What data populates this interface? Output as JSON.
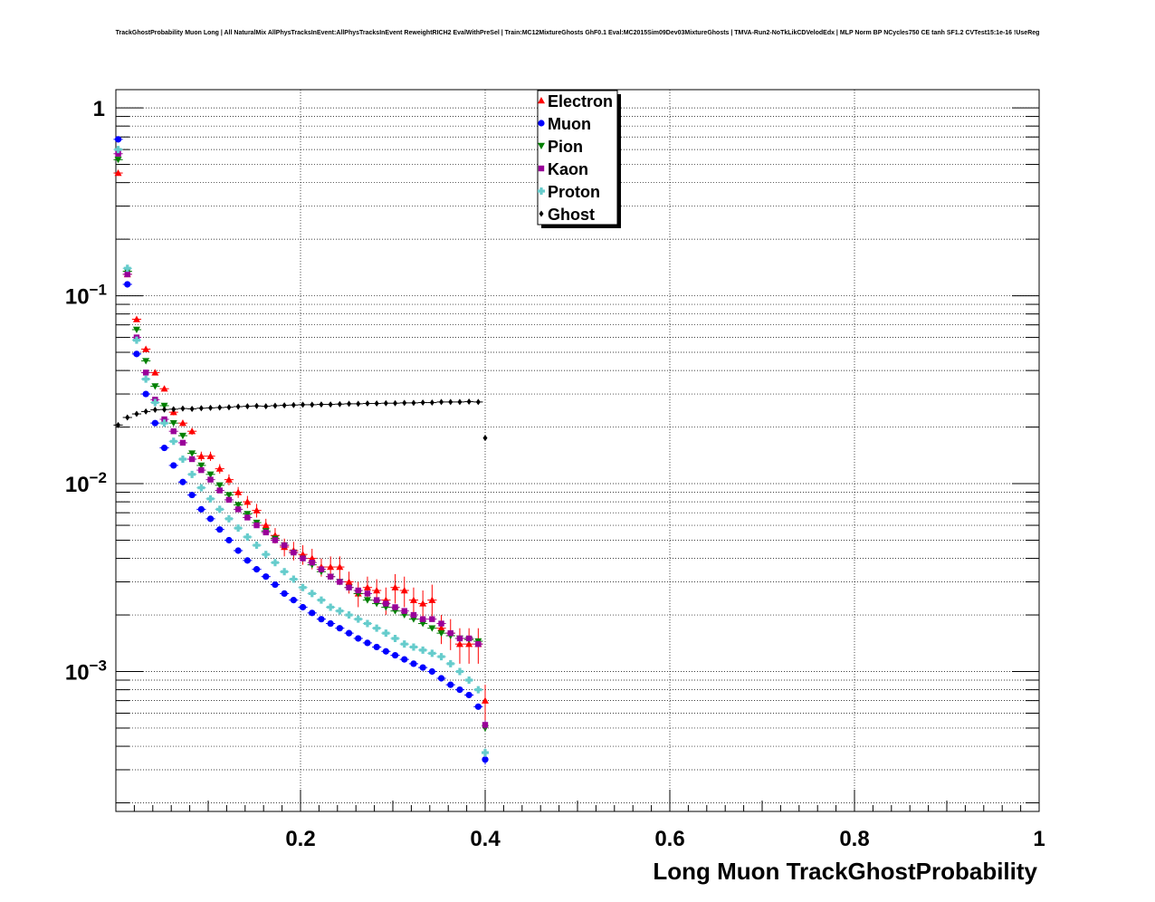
{
  "chart_data": {
    "type": "scatter",
    "title": "TrackGhostProbability Muon Long | All NaturalMix AllPhysTracksInEvent:AllPhysTracksInEvent ReweightRICH2 EvalWithPreSel | Train:MC12MixtureGhosts GhF0.1 Eval:MC2015Sim09Dev03MixtureGhosts | TMVA-Run2-NoTkLikCDVelodEdx | MLP Norm BP NCycles750 CE tanh SF1.2 CVTest15:1e-16 !UseReg",
    "xlabel": "Long Muon TrackGhostProbability",
    "ylabel": "",
    "xlim": [
      0.0,
      1.0
    ],
    "ylim": [
      0.00018,
      1.25
    ],
    "yscale": "log",
    "grid": true,
    "legend_position": "top-center",
    "x_ticks": [
      "0.2",
      "0.4",
      "0.6",
      "0.8",
      "1"
    ],
    "y_ticks": [
      {
        "value": 1,
        "base": "1",
        "exp": ""
      },
      {
        "value": 0.1,
        "base": "10",
        "exp": "−1"
      },
      {
        "value": 0.01,
        "base": "10",
        "exp": "−2"
      },
      {
        "value": 0.001,
        "base": "10",
        "exp": "−3"
      }
    ],
    "x": [
      0.0025,
      0.0125,
      0.0225,
      0.0325,
      0.0425,
      0.0525,
      0.0625,
      0.0725,
      0.0825,
      0.0925,
      0.1025,
      0.1125,
      0.1225,
      0.1325,
      0.1425,
      0.1525,
      0.1625,
      0.1725,
      0.1825,
      0.1925,
      0.2025,
      0.2125,
      0.2225,
      0.2325,
      0.2425,
      0.2525,
      0.2625,
      0.2725,
      0.2825,
      0.2925,
      0.3025,
      0.3125,
      0.3225,
      0.3325,
      0.3425,
      0.3525,
      0.3625,
      0.3725,
      0.3825,
      0.3925,
      0.4
    ],
    "series": [
      {
        "name": "Electron",
        "color": "#ff0000",
        "marker": "triangle-up",
        "values": [
          0.45,
          0.13,
          0.075,
          0.052,
          0.039,
          0.032,
          0.024,
          0.021,
          0.019,
          0.014,
          0.014,
          0.012,
          0.0105,
          0.009,
          0.008,
          0.0072,
          0.006,
          0.0053,
          0.0046,
          0.0044,
          0.0042,
          0.004,
          0.0036,
          0.0036,
          0.0036,
          0.003,
          0.0026,
          0.0028,
          0.0027,
          0.0024,
          0.0028,
          0.0027,
          0.0024,
          0.0023,
          0.0024,
          0.0017,
          0.0016,
          0.0014,
          0.0014,
          0.0014,
          0.0007
        ],
        "errors": [
          0.01,
          0.004,
          0.002,
          0.0015,
          0.0012,
          0.001,
          0.0009,
          0.0008,
          0.0008,
          0.0008,
          0.0008,
          0.0007,
          0.0007,
          0.0006,
          0.0006,
          0.0006,
          0.0005,
          0.0005,
          0.0005,
          0.0005,
          0.0005,
          0.0005,
          0.0004,
          0.0005,
          0.0005,
          0.0004,
          0.0004,
          0.0004,
          0.0004,
          0.0004,
          0.0005,
          0.0005,
          0.0004,
          0.0004,
          0.0005,
          0.0003,
          0.0003,
          0.0003,
          0.0003,
          0.0003,
          0.00015
        ]
      },
      {
        "name": "Muon",
        "color": "#0000ff",
        "marker": "circle",
        "values": [
          0.68,
          0.115,
          0.049,
          0.03,
          0.021,
          0.0155,
          0.0125,
          0.0102,
          0.0087,
          0.0073,
          0.0065,
          0.0057,
          0.005,
          0.0044,
          0.0039,
          0.0035,
          0.0032,
          0.0029,
          0.0026,
          0.0024,
          0.0022,
          0.00205,
          0.0019,
          0.0018,
          0.0017,
          0.0016,
          0.0015,
          0.00142,
          0.00135,
          0.00128,
          0.00122,
          0.00116,
          0.0011,
          0.00105,
          0.001,
          0.00092,
          0.00085,
          0.0008,
          0.00075,
          0.00065,
          0.00034
        ],
        "errors": [
          0.005,
          0.001,
          0.0005,
          0.0003,
          0.0002,
          0.0002,
          0.0001,
          0.0001,
          0.0001,
          0.0001,
          0.0001,
          8e-05,
          7e-05,
          6e-05,
          6e-05,
          5e-05,
          5e-05,
          4e-05,
          4e-05,
          4e-05,
          4e-05,
          3e-05,
          3e-05,
          3e-05,
          3e-05,
          3e-05,
          3e-05,
          3e-05,
          3e-05,
          3e-05,
          3e-05,
          3e-05,
          3e-05,
          3e-05,
          3e-05,
          3e-05,
          2e-05,
          2e-05,
          2e-05,
          2e-05,
          2e-05
        ]
      },
      {
        "name": "Pion",
        "color": "#008000",
        "marker": "triangle-down",
        "values": [
          0.53,
          0.135,
          0.066,
          0.045,
          0.033,
          0.026,
          0.021,
          0.018,
          0.0145,
          0.0125,
          0.0112,
          0.0098,
          0.0087,
          0.0077,
          0.0069,
          0.0062,
          0.0056,
          0.0051,
          0.0047,
          0.0043,
          0.004,
          0.0037,
          0.0034,
          0.0032,
          0.003,
          0.0028,
          0.0026,
          0.0024,
          0.0023,
          0.0022,
          0.0021,
          0.002,
          0.0019,
          0.0018,
          0.0017,
          0.0016,
          0.00155,
          0.0015,
          0.00148,
          0.00145,
          0.0005
        ],
        "errors": [
          0.004,
          0.001,
          0.0006,
          0.0004,
          0.0003,
          0.0002,
          0.0002,
          0.0002,
          0.0001,
          0.0001,
          0.0001,
          0.0001,
          0.0001,
          0.0001,
          8e-05,
          8e-05,
          7e-05,
          7e-05,
          6e-05,
          6e-05,
          6e-05,
          5e-05,
          5e-05,
          5e-05,
          5e-05,
          4e-05,
          4e-05,
          4e-05,
          4e-05,
          4e-05,
          4e-05,
          4e-05,
          4e-05,
          4e-05,
          4e-05,
          3e-05,
          3e-05,
          3e-05,
          3e-05,
          3e-05,
          2e-05
        ]
      },
      {
        "name": "Kaon",
        "color": "#990099",
        "marker": "square",
        "values": [
          0.57,
          0.13,
          0.06,
          0.039,
          0.028,
          0.022,
          0.019,
          0.0165,
          0.0135,
          0.0118,
          0.0105,
          0.0092,
          0.0082,
          0.0073,
          0.0066,
          0.006,
          0.0055,
          0.005,
          0.0047,
          0.0043,
          0.004,
          0.0038,
          0.0035,
          0.0032,
          0.003,
          0.0028,
          0.0027,
          0.0026,
          0.0024,
          0.0023,
          0.0022,
          0.0021,
          0.002,
          0.0019,
          0.0019,
          0.0018,
          0.0016,
          0.0015,
          0.0015,
          0.0014,
          0.00052
        ],
        "errors": [
          0.005,
          0.002,
          0.0008,
          0.0005,
          0.0004,
          0.0003,
          0.0003,
          0.0002,
          0.0002,
          0.0002,
          0.0002,
          0.0002,
          0.0001,
          0.0001,
          0.0001,
          0.0001,
          0.0001,
          0.0001,
          0.0001,
          0.0001,
          9e-05,
          9e-05,
          8e-05,
          8e-05,
          8e-05,
          7e-05,
          7e-05,
          7e-05,
          7e-05,
          7e-05,
          6e-05,
          6e-05,
          6e-05,
          6e-05,
          6e-05,
          6e-05,
          5e-05,
          5e-05,
          5e-05,
          5e-05,
          3e-05
        ]
      },
      {
        "name": "Proton",
        "color": "#66cccc",
        "marker": "cross",
        "values": [
          0.6,
          0.14,
          0.058,
          0.036,
          0.027,
          0.021,
          0.0168,
          0.0135,
          0.0112,
          0.0095,
          0.0083,
          0.0073,
          0.0065,
          0.0058,
          0.0052,
          0.0047,
          0.0042,
          0.0038,
          0.0034,
          0.0031,
          0.0028,
          0.0026,
          0.0024,
          0.0022,
          0.0021,
          0.002,
          0.0019,
          0.0018,
          0.0017,
          0.0016,
          0.0015,
          0.0014,
          0.00135,
          0.0013,
          0.00125,
          0.0012,
          0.0011,
          0.001,
          0.0009,
          0.0008,
          0.00037
        ],
        "errors": [
          0.005,
          0.001,
          0.0006,
          0.0004,
          0.0003,
          0.0002,
          0.0002,
          0.0002,
          0.0001,
          0.0001,
          0.0001,
          0.0001,
          0.0001,
          8e-05,
          8e-05,
          7e-05,
          7e-05,
          6e-05,
          6e-05,
          6e-05,
          5e-05,
          5e-05,
          5e-05,
          5e-05,
          5e-05,
          4e-05,
          4e-05,
          4e-05,
          4e-05,
          4e-05,
          4e-05,
          4e-05,
          4e-05,
          4e-05,
          4e-05,
          4e-05,
          3e-05,
          3e-05,
          3e-05,
          3e-05,
          2e-05
        ]
      },
      {
        "name": "Ghost",
        "color": "#000000",
        "marker": "diamond",
        "values": [
          0.0205,
          0.0225,
          0.0235,
          0.0242,
          0.0247,
          0.0248,
          0.0249,
          0.0251,
          0.025,
          0.0252,
          0.0253,
          0.0254,
          0.0255,
          0.0257,
          0.0258,
          0.0259,
          0.0258,
          0.026,
          0.0261,
          0.0262,
          0.0263,
          0.0263,
          0.0264,
          0.0264,
          0.0265,
          0.0266,
          0.0266,
          0.0267,
          0.0267,
          0.0268,
          0.0268,
          0.0269,
          0.0269,
          0.027,
          0.027,
          0.0272,
          0.0272,
          0.0272,
          0.0273,
          0.0272,
          0.0175
        ],
        "errors": [
          0.0002,
          0.0002,
          0.0002,
          0.0002,
          0.0002,
          0.0002,
          0.0002,
          0.0002,
          0.0002,
          0.0002,
          0.0002,
          0.0002,
          0.0002,
          0.0002,
          0.0002,
          0.0002,
          0.0002,
          0.0002,
          0.0002,
          0.0002,
          0.0002,
          0.0002,
          0.0002,
          0.0002,
          0.0002,
          0.0002,
          0.0002,
          0.0002,
          0.0002,
          0.0002,
          0.0002,
          0.0002,
          0.0002,
          0.0002,
          0.0002,
          0.0002,
          0.0002,
          0.0002,
          0.0002,
          0.0002,
          0.0002
        ]
      }
    ]
  }
}
